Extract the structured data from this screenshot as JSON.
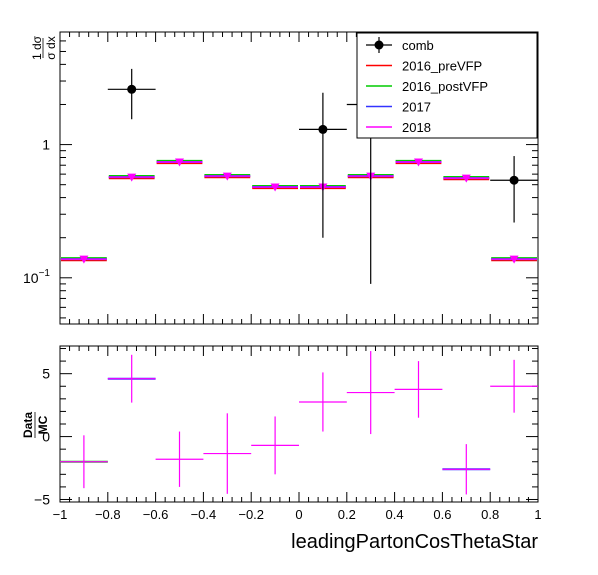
{
  "chart_data": [
    {
      "type": "scatter",
      "panel": "top",
      "ylabel_num": "1 dσ",
      "ylabel_den": "σ dx",
      "yscale": "log",
      "ylim": [
        0.045,
        7.0
      ],
      "xlim": [
        -1,
        1
      ],
      "yticks": [
        {
          "value": 0.1,
          "base": "10",
          "exp": "−1"
        },
        {
          "value": 1,
          "label": "1"
        }
      ],
      "legend": {
        "placement": "top-right",
        "entries": [
          {
            "label": "comb",
            "color": "#000000",
            "style": "marker"
          },
          {
            "label": "2016_preVFP",
            "color": "#ff0000",
            "style": "line"
          },
          {
            "label": "2016_postVFP",
            "color": "#00cc00",
            "style": "line"
          },
          {
            "label": "2017",
            "color": "#3333ff",
            "style": "line"
          },
          {
            "label": "2018",
            "color": "#ff00ff",
            "style": "line"
          }
        ]
      },
      "bins": [
        -1.0,
        -0.8,
        -0.6,
        -0.4,
        -0.2,
        0.0,
        0.2,
        0.4,
        0.6,
        0.8,
        1.0
      ],
      "mc": [
        0.138,
        0.57,
        0.74,
        0.58,
        0.48,
        0.48,
        0.58,
        0.74,
        0.56,
        0.138
      ],
      "comb": [
        {
          "x": -0.7,
          "y": 2.6,
          "ylo": 1.55,
          "yhi": 3.7
        },
        {
          "x": 0.1,
          "y": 1.3,
          "ylo": 0.2,
          "yhi": 2.45
        },
        {
          "x": 0.3,
          "y": 2.0,
          "ylo": 0.09,
          "yhi": 5.5
        },
        {
          "x": 0.9,
          "y": 0.54,
          "ylo": 0.26,
          "yhi": 0.82
        }
      ]
    },
    {
      "type": "scatter",
      "panel": "bottom",
      "ylabel_num": "Data",
      "ylabel_den": "MC",
      "xlabel": "leadingPartonCosThetaStar",
      "ylim": [
        -5.2,
        7.2
      ],
      "xlim": [
        -1,
        1
      ],
      "yticks": [
        -5,
        0,
        5
      ],
      "xticks": [
        -1,
        -0.8,
        -0.6,
        -0.4,
        -0.2,
        0,
        0.2,
        0.4,
        0.6,
        0.8,
        1
      ],
      "xtick_labels": [
        "−1",
        "−0.8",
        "−0.6",
        "−0.4",
        "−0.2",
        "0",
        "0.2",
        "0.4",
        "0.6",
        "0.8",
        "1"
      ],
      "ratio": [
        {
          "x": -0.9,
          "y": -2.0,
          "err": 2.1,
          "color": "#00cc00"
        },
        {
          "x": -0.7,
          "y": 4.6,
          "err": 1.9,
          "color": "#3333ff"
        },
        {
          "x": -0.5,
          "y": -1.8,
          "err": 2.2,
          "color": "#ff00ff"
        },
        {
          "x": -0.3,
          "y": -1.35,
          "err": 3.2,
          "color": "#ff00ff"
        },
        {
          "x": -0.1,
          "y": -0.7,
          "err": 2.3,
          "color": "#ff00ff"
        },
        {
          "x": 0.1,
          "y": 2.75,
          "err": 2.35,
          "color": "#ff00ff"
        },
        {
          "x": 0.3,
          "y": 3.5,
          "err": 3.3,
          "color": "#ff00ff"
        },
        {
          "x": 0.5,
          "y": 3.75,
          "err": 2.25,
          "color": "#ff00ff"
        },
        {
          "x": 0.7,
          "y": -2.6,
          "err": 2.0,
          "color": "#3333ff"
        },
        {
          "x": 0.9,
          "y": 4.0,
          "err": 2.1,
          "color": "#ff00ff"
        }
      ]
    }
  ]
}
